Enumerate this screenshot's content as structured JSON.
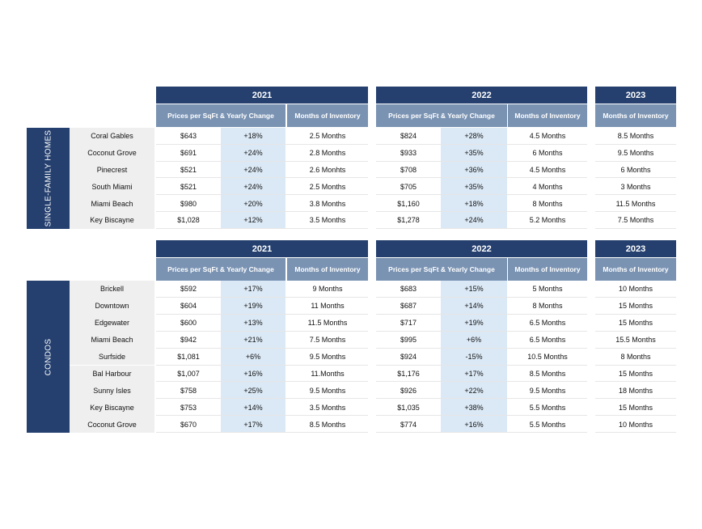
{
  "sections": [
    {
      "label": "SINGLE-FAMILY HOMES",
      "year_headers": {
        "y2021": "2021",
        "y2022": "2022",
        "y2023": "2023"
      },
      "sub_headers": {
        "price_2021": "Prices per SqFt & Yearly Change",
        "inv_2021": "Months of Inventory",
        "price_2022": "Prices per SqFt & Yearly Change",
        "inv_2022": "Months of Inventory",
        "inv_2023": "Months of Inventory"
      },
      "rows": [
        {
          "name": "Coral Gables",
          "p21": "$643",
          "c21": "+18%",
          "m21": "2.5 Months",
          "p22": "$824",
          "c22": "+28%",
          "m22": "4.5 Months",
          "m23": "8.5 Months"
        },
        {
          "name": "Coconut Grove",
          "p21": "$691",
          "c21": "+24%",
          "m21": "2.8 Months",
          "p22": "$933",
          "c22": "+35%",
          "m22": "6 Months",
          "m23": "9.5 Months"
        },
        {
          "name": "Pinecrest",
          "p21": "$521",
          "c21": "+24%",
          "m21": "2.6 Monhts",
          "p22": "$708",
          "c22": "+36%",
          "m22": "4.5 Months",
          "m23": "6 Months"
        },
        {
          "name": "South Miami",
          "p21": "$521",
          "c21": "+24%",
          "m21": "2.5 Months",
          "p22": "$705",
          "c22": "+35%",
          "m22": "4 Months",
          "m23": "3 Months"
        },
        {
          "name": "Miami Beach",
          "p21": "$980",
          "c21": "+20%",
          "m21": "3.8 Months",
          "p22": "$1,160",
          "c22": "+18%",
          "m22": "8  Months",
          "m23": "11.5 Months"
        },
        {
          "name": "Key Biscayne",
          "p21": "$1,028",
          "c21": "+12%",
          "m21": "3.5 Months",
          "p22": "$1,278",
          "c22": "+24%",
          "m22": "5.2 Months",
          "m23": "7.5 Months"
        }
      ]
    },
    {
      "label": "CONDOS",
      "year_headers": {
        "y2021": "2021",
        "y2022": "2022",
        "y2023": "2023"
      },
      "sub_headers": {
        "price_2021": "Prices per SqFt & Yearly Change",
        "inv_2021": "Months of Inventory",
        "price_2022": "Prices per SqFt & Yearly Change",
        "inv_2022": "Months of Inventory",
        "inv_2023": "Months of Inventory"
      },
      "rows": [
        {
          "name": "Brickell",
          "p21": "$592",
          "c21": "+17%",
          "m21": "9 Months",
          "p22": "$683",
          "c22": "+15%",
          "m22": "5 Months",
          "m23": "10 Months"
        },
        {
          "name": "Downtown",
          "p21": "$604",
          "c21": "+19%",
          "m21": "11 Months",
          "p22": "$687",
          "c22": "+14%",
          "m22": "8 Months",
          "m23": "15 Months"
        },
        {
          "name": "Edgewater",
          "p21": "$600",
          "c21": "+13%",
          "m21": "11.5 Months",
          "p22": "$717",
          "c22": "+19%",
          "m22": "6.5 Months",
          "m23": "15 Months"
        },
        {
          "name": "Miami Beach",
          "p21": "$942",
          "c21": "+21%",
          "m21": "7.5 Months",
          "p22": "$995",
          "c22": "+6%",
          "m22": "6.5 Months",
          "m23": "15.5 Months"
        },
        {
          "name": "Surfside",
          "p21": "$1,081",
          "c21": "+6%",
          "m21": "9.5 Months",
          "p22": "$924",
          "c22": "-15%",
          "m22": "10.5 Months",
          "m23": "8 Months"
        },
        {
          "name": "Bal Harbour",
          "p21": "$1,007",
          "c21": "+16%",
          "m21": "11.Months",
          "p22": "$1,176",
          "c22": "+17%",
          "m22": "8.5 Months",
          "m23": "15 Months"
        },
        {
          "name": "Sunny Isles",
          "p21": "$758",
          "c21": "+25%",
          "m21": "9.5 Months",
          "p22": "$926",
          "c22": "+22%",
          "m22": "9.5 Months",
          "m23": "18 Months"
        },
        {
          "name": "Key Biscayne",
          "p21": "$753",
          "c21": "+14%",
          "m21": "3.5 Months",
          "p22": "$1,035",
          "c22": "+38%",
          "m22": "5.5 Months",
          "m23": "15 Months"
        },
        {
          "name": "Coconut Grove",
          "p21": "$670",
          "c21": "+17%",
          "m21": "8.5 Months",
          "p22": "$774",
          "c22": "+16%",
          "m22": "5.5 Months",
          "m23": "10 Months"
        }
      ]
    }
  ]
}
